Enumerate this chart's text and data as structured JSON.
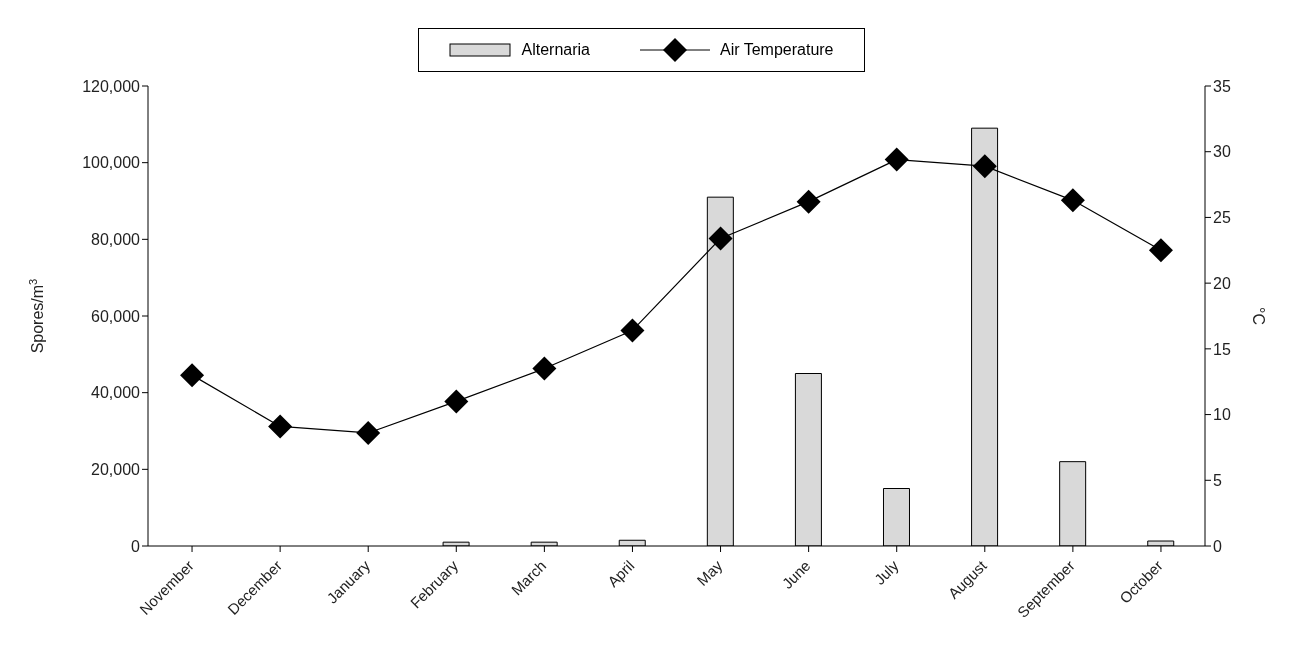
{
  "chart_data": {
    "type": "bar",
    "categories": [
      "November",
      "December",
      "January",
      "February",
      "March",
      "April",
      "May",
      "June",
      "July",
      "August",
      "September",
      "October"
    ],
    "series": [
      {
        "name": "Alternaria",
        "color": "#d9d9d9",
        "values": [
          0,
          0,
          0,
          1000,
          1000,
          1500,
          91000,
          45000,
          15000,
          109000,
          22000,
          1300
        ]
      },
      {
        "name": "Air Temperature",
        "type": "line",
        "axis": "y2",
        "color": "#000000",
        "marker": "diamond",
        "values": [
          13.0,
          9.1,
          8.6,
          11.0,
          13.5,
          16.4,
          23.4,
          26.2,
          29.4,
          28.9,
          26.3,
          22.5
        ]
      }
    ],
    "ylabel": "Spores/m$^{3}$",
    "y2label": "°C",
    "ylim": [
      0,
      120000
    ],
    "yticks": [
      0,
      {
        "value": 20000,
        "label": "20,000"
      },
      {
        "value": 40000,
        "label": "40,000"
      },
      {
        "value": 60000,
        "label": "60,000"
      },
      {
        "value": 80000,
        "label": "80,000"
      },
      {
        "value": 100000,
        "label": "100,000"
      },
      {
        "value": 120000,
        "label": "120,000"
      }
    ],
    "y2lim": [
      0,
      35
    ],
    "y2ticks": [
      0,
      5,
      10,
      15,
      20,
      25,
      30,
      35
    ],
    "legend": "top"
  }
}
